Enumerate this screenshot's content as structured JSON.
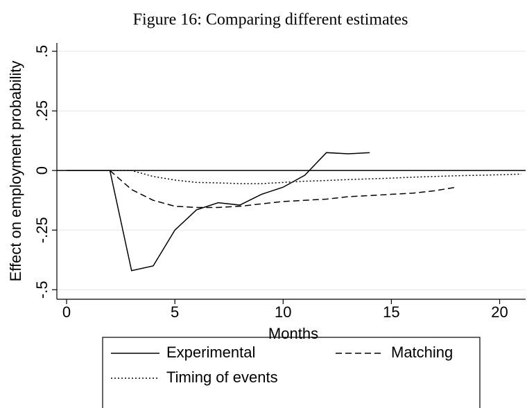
{
  "chart_data": {
    "type": "line",
    "title": "Figure 16: Comparing different estimates",
    "x_label": "Months",
    "y_label": "Effect on employment probability",
    "xlim": [
      -0.45,
      21.2
    ],
    "ylim": [
      -0.54,
      0.535
    ],
    "xticks": [
      0,
      5,
      10,
      15,
      20
    ],
    "yticks": [
      {
        "value": -0.5,
        "label": "-.5"
      },
      {
        "value": -0.25,
        "label": "-.25"
      },
      0,
      {
        "value": 0.25,
        "label": ".25"
      },
      {
        "value": 0.5,
        "label": ".5"
      }
    ],
    "grid": true,
    "reference_line": 0,
    "series": [
      {
        "name": "Experimental",
        "color": "#000000",
        "style": "solid",
        "x": [
          0,
          1,
          2,
          3,
          4,
          5,
          6,
          7,
          8,
          9,
          10,
          11,
          12,
          13,
          14
        ],
        "values": [
          0,
          0,
          0,
          -0.42,
          -0.4,
          -0.25,
          -0.165,
          -0.135,
          -0.145,
          -0.1,
          -0.07,
          -0.02,
          0.075,
          0.07,
          0.075
        ]
      },
      {
        "name": "Matching",
        "color": "#000000",
        "style": "dashed",
        "x": [
          2,
          3,
          4,
          5,
          6,
          7,
          8,
          9,
          10,
          11,
          12,
          13,
          14,
          15,
          16,
          17,
          18
        ],
        "values": [
          0,
          -0.08,
          -0.125,
          -0.15,
          -0.155,
          -0.155,
          -0.15,
          -0.14,
          -0.13,
          -0.125,
          -0.12,
          -0.11,
          -0.105,
          -0.1,
          -0.095,
          -0.085,
          -0.07
        ]
      },
      {
        "name": "Timing of events",
        "color": "#000000",
        "style": "dotted",
        "x": [
          2,
          3,
          4,
          5,
          6,
          7,
          8,
          9,
          10,
          11,
          12,
          13,
          14,
          15,
          16,
          17,
          18,
          19,
          20,
          21
        ],
        "values": [
          0,
          0,
          -0.025,
          -0.04,
          -0.05,
          -0.052,
          -0.055,
          -0.055,
          -0.05,
          -0.045,
          -0.042,
          -0.038,
          -0.035,
          -0.032,
          -0.028,
          -0.025,
          -0.022,
          -0.02,
          -0.018,
          -0.015
        ]
      }
    ]
  }
}
